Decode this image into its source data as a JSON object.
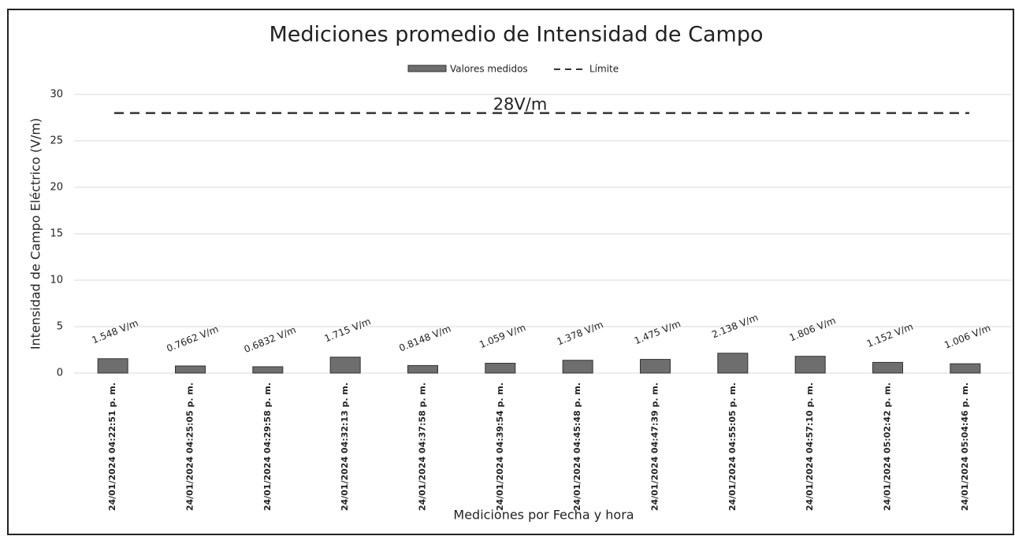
{
  "chart_data": {
    "type": "bar",
    "title": "Mediciones promedio de Intensidad de Campo",
    "x_label": "Mediciones por Fecha y hora",
    "y_label": "Intensidad de Campo Eléctrico (V/m)",
    "categories": [
      "24/01/2024 04:22:51 p. m.",
      "24/01/2024 04:25:05 p. m.",
      "24/01/2024 04:29:58 p. m.",
      "24/01/2024 04:32:13 p. m.",
      "24/01/2024 04:37:58 p. m.",
      "24/01/2024 04:39:54 p. m.",
      "24/01/2024 04:45:48 p. m.",
      "24/01/2024 04:47:39 p. m.",
      "24/01/2024 04:55:05 p. m.",
      "24/01/2024 04:57:10 p. m.",
      "24/01/2024 05:02:42 p. m.",
      "24/01/2024 05:04:46 p. m."
    ],
    "series": [
      {
        "name": "Valores medidos",
        "color": "#6e6e6e",
        "values": [
          1.548,
          0.7662,
          0.6832,
          1.715,
          0.8148,
          1.059,
          1.378,
          1.475,
          2.138,
          1.806,
          1.152,
          1.006
        ],
        "value_labels": [
          "1.548 V/m",
          "0.7662 V/m",
          "0.6832 V/m",
          "1.715 V/m",
          "0.8148 V/m",
          "1.059 V/m",
          "1.378 V/m",
          "1.475 V/m",
          "2.138 V/m",
          "1.806 V/m",
          "1.152 V/m",
          "1.006 V/m"
        ]
      }
    ],
    "limit": {
      "name": "Límite",
      "value": 28,
      "label": "28V/m",
      "color": "#333333"
    },
    "ylim": [
      0,
      30
    ],
    "yticks": [
      0,
      5,
      10,
      15,
      20,
      25,
      30
    ],
    "grid": true,
    "legend": "top"
  }
}
